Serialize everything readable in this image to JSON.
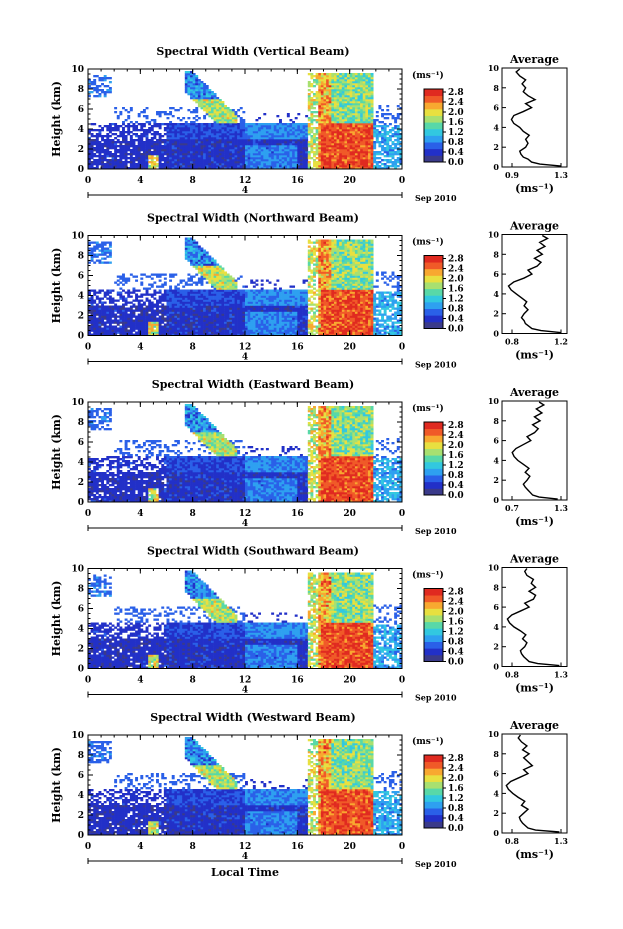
{
  "colors": {
    "scale": [
      "#3a3a8a",
      "#2230c8",
      "#2a60e8",
      "#2ea0f0",
      "#32c8e0",
      "#58d8a8",
      "#a8e070",
      "#e8e040",
      "#f8a830",
      "#f05a28",
      "#e02a20"
    ],
    "profile_line": "#000000",
    "background": "#ffffff"
  },
  "chart_data": [
    {
      "type": "heatmap",
      "title": "Spectral Width (Vertical Beam)",
      "ylabel": "Height (km)",
      "xticks": [
        "0",
        "4",
        "8",
        "12",
        "16",
        "20",
        "0"
      ],
      "yticks": [
        "0",
        "2",
        "4",
        "6",
        "8",
        "10"
      ],
      "xlim": [
        0,
        24
      ],
      "ylim": [
        0,
        10
      ],
      "date_marker": "4",
      "date_label": "Sep 2010",
      "colorbar": {
        "unit": "(ms⁻¹)",
        "ticks": [
          "2.8",
          "2.4",
          "2.0",
          "1.6",
          "1.2",
          "0.8",
          "0.4",
          "0.0"
        ],
        "range": [
          0.0,
          2.8
        ]
      },
      "profile": {
        "title": "Average",
        "xlabel": "(ms⁻¹)",
        "xticks": [
          "0.9",
          "1.3"
        ],
        "xlim": [
          0.8,
          1.35
        ],
        "ylim": [
          0,
          10
        ],
        "yticks": [
          "0",
          "2",
          "4",
          "6",
          "8",
          "10"
        ],
        "height": [
          0.1,
          0.3,
          0.5,
          0.8,
          1.0,
          1.3,
          1.6,
          2.0,
          2.4,
          2.8,
          3.2,
          3.6,
          4.0,
          4.4,
          4.8,
          5.2,
          5.6,
          6.0,
          6.4,
          6.8,
          7.2,
          7.6,
          8.0,
          8.4,
          8.8,
          9.2,
          9.6,
          9.9
        ],
        "values": [
          1.3,
          1.12,
          1.05,
          1.02,
          0.98,
          0.96,
          0.95,
          1.0,
          1.02,
          1.0,
          1.03,
          0.98,
          0.95,
          0.9,
          0.88,
          0.9,
          0.98,
          1.05,
          1.0,
          1.08,
          1.02,
          0.98,
          1.0,
          0.97,
          1.0,
          0.95,
          0.92,
          0.95
        ]
      }
    },
    {
      "type": "heatmap",
      "title": "Spectral Width (Northward Beam)",
      "ylabel": "Height (km)",
      "xticks": [
        "0",
        "4",
        "8",
        "12",
        "16",
        "20",
        "0"
      ],
      "yticks": [
        "0",
        "2",
        "4",
        "6",
        "8",
        "10"
      ],
      "xlim": [
        0,
        24
      ],
      "ylim": [
        0,
        10
      ],
      "date_marker": "4",
      "date_label": "Sep 2010",
      "colorbar": {
        "unit": "(ms⁻¹)",
        "ticks": [
          "2.8",
          "2.4",
          "2.0",
          "1.6",
          "1.2",
          "0.8",
          "0.4",
          "0.0"
        ],
        "range": [
          0.0,
          2.8
        ]
      },
      "profile": {
        "title": "Average",
        "xlabel": "(ms⁻¹)",
        "xticks": [
          "0.8",
          "1.2"
        ],
        "xlim": [
          0.75,
          1.25
        ],
        "ylim": [
          0,
          10
        ],
        "yticks": [
          "0",
          "2",
          "4",
          "6",
          "8",
          "10"
        ],
        "height": [
          0.1,
          0.3,
          0.5,
          0.8,
          1.0,
          1.3,
          1.6,
          2.0,
          2.4,
          2.8,
          3.2,
          3.6,
          4.0,
          4.4,
          4.8,
          5.2,
          5.6,
          6.0,
          6.4,
          6.8,
          7.2,
          7.6,
          8.0,
          8.4,
          8.8,
          9.2,
          9.6,
          9.9
        ],
        "values": [
          1.2,
          1.05,
          0.98,
          0.95,
          0.93,
          0.92,
          0.9,
          0.92,
          0.95,
          0.92,
          0.94,
          0.9,
          0.86,
          0.82,
          0.8,
          0.84,
          0.92,
          0.98,
          0.95,
          1.02,
          1.05,
          1.0,
          1.06,
          1.02,
          1.08,
          1.04,
          1.1,
          1.06
        ]
      }
    },
    {
      "type": "heatmap",
      "title": "Spectral Width (Eastward Beam)",
      "ylabel": "Height (km)",
      "xticks": [
        "0",
        "4",
        "8",
        "12",
        "16",
        "20",
        "0"
      ],
      "yticks": [
        "0",
        "2",
        "4",
        "6",
        "8",
        "10"
      ],
      "xlim": [
        0,
        24
      ],
      "ylim": [
        0,
        10
      ],
      "date_marker": "4",
      "date_label": "Sep 2010",
      "colorbar": {
        "unit": "(ms⁻¹)",
        "ticks": [
          "2.8",
          "2.4",
          "2.0",
          "1.6",
          "1.2",
          "0.8",
          "0.4",
          "0.0"
        ],
        "range": [
          0.0,
          2.8
        ]
      },
      "profile": {
        "title": "Average",
        "xlabel": "(ms⁻¹)",
        "xticks": [
          "0.7",
          "1.3"
        ],
        "xlim": [
          0.65,
          1.35
        ],
        "ylim": [
          0,
          10
        ],
        "yticks": [
          "0",
          "2",
          "4",
          "6",
          "8",
          "10"
        ],
        "height": [
          0.1,
          0.3,
          0.5,
          0.8,
          1.0,
          1.3,
          1.6,
          2.0,
          2.4,
          2.8,
          3.2,
          3.6,
          4.0,
          4.4,
          4.8,
          5.2,
          5.6,
          6.0,
          6.4,
          6.8,
          7.2,
          7.6,
          8.0,
          8.4,
          8.8,
          9.2,
          9.6,
          9.9
        ],
        "values": [
          1.25,
          1.05,
          0.98,
          0.95,
          0.93,
          0.9,
          0.88,
          0.92,
          0.95,
          0.9,
          0.94,
          0.88,
          0.82,
          0.78,
          0.76,
          0.8,
          0.88,
          0.96,
          0.92,
          1.0,
          1.04,
          0.98,
          1.06,
          1.0,
          1.08,
          1.02,
          1.1,
          1.05
        ]
      }
    },
    {
      "type": "heatmap",
      "title": "Spectral Width (Southward Beam)",
      "ylabel": "Height (km)",
      "xticks": [
        "0",
        "4",
        "8",
        "12",
        "16",
        "20",
        "0"
      ],
      "yticks": [
        "0",
        "2",
        "4",
        "6",
        "8",
        "10"
      ],
      "xlim": [
        0,
        24
      ],
      "ylim": [
        0,
        10
      ],
      "date_marker": "4",
      "date_label": "Sep 2010",
      "colorbar": {
        "unit": "(ms⁻¹)",
        "ticks": [
          "2.8",
          "2.4",
          "2.0",
          "1.6",
          "1.2",
          "0.8",
          "0.4",
          "0.0"
        ],
        "range": [
          0.0,
          2.8
        ]
      },
      "profile": {
        "title": "Average",
        "xlabel": "(ms⁻¹)",
        "xticks": [
          "0.8",
          "1.3"
        ],
        "xlim": [
          0.75,
          1.35
        ],
        "ylim": [
          0,
          10
        ],
        "yticks": [
          "0",
          "2",
          "4",
          "6",
          "8",
          "10"
        ],
        "height": [
          0.1,
          0.3,
          0.5,
          0.8,
          1.0,
          1.3,
          1.6,
          2.0,
          2.4,
          2.8,
          3.2,
          3.6,
          4.0,
          4.4,
          4.8,
          5.2,
          5.6,
          6.0,
          6.4,
          6.8,
          7.2,
          7.6,
          8.0,
          8.4,
          8.8,
          9.2,
          9.6,
          9.9
        ],
        "values": [
          1.28,
          1.08,
          1.0,
          0.97,
          0.95,
          0.93,
          0.92,
          0.96,
          0.98,
          0.94,
          0.97,
          0.92,
          0.86,
          0.82,
          0.8,
          0.84,
          0.92,
          1.0,
          0.96,
          1.04,
          1.06,
          1.0,
          1.06,
          1.02,
          1.04,
          0.98,
          0.96,
          0.98
        ]
      }
    },
    {
      "type": "heatmap",
      "title": "Spectral Width (Westward Beam)",
      "ylabel": "Height (km)",
      "xticks": [
        "0",
        "4",
        "8",
        "12",
        "16",
        "20",
        "0"
      ],
      "yticks": [
        "0",
        "2",
        "4",
        "6",
        "8",
        "10"
      ],
      "xlim": [
        0,
        24
      ],
      "ylim": [
        0,
        10
      ],
      "date_marker": "4",
      "date_label": "Sep 2010",
      "xlabel": "Local Time",
      "colorbar": {
        "unit": "(ms⁻¹)",
        "ticks": [
          "2.8",
          "2.4",
          "2.0",
          "1.6",
          "1.2",
          "0.8",
          "0.4",
          "0.0"
        ],
        "range": [
          0.0,
          2.8
        ]
      },
      "profile": {
        "title": "Average",
        "xlabel": "(ms⁻¹)",
        "xticks": [
          "0.8",
          "1.3"
        ],
        "xlim": [
          0.75,
          1.35
        ],
        "ylim": [
          0,
          10
        ],
        "yticks": [
          "0",
          "2",
          "4",
          "6",
          "8",
          "10"
        ],
        "height": [
          0.1,
          0.3,
          0.5,
          0.8,
          1.0,
          1.3,
          1.6,
          2.0,
          2.4,
          2.8,
          3.2,
          3.6,
          4.0,
          4.4,
          4.8,
          5.2,
          5.6,
          6.0,
          6.4,
          6.8,
          7.2,
          7.6,
          8.0,
          8.4,
          8.8,
          9.2,
          9.6,
          9.9
        ],
        "values": [
          1.28,
          1.06,
          0.99,
          0.96,
          0.94,
          0.92,
          0.91,
          0.95,
          0.99,
          0.93,
          0.96,
          0.9,
          0.85,
          0.81,
          0.79,
          0.83,
          0.91,
          0.99,
          0.95,
          1.03,
          0.99,
          0.95,
          1.0,
          0.94,
          0.98,
          0.93,
          0.9,
          0.92
        ]
      }
    }
  ]
}
